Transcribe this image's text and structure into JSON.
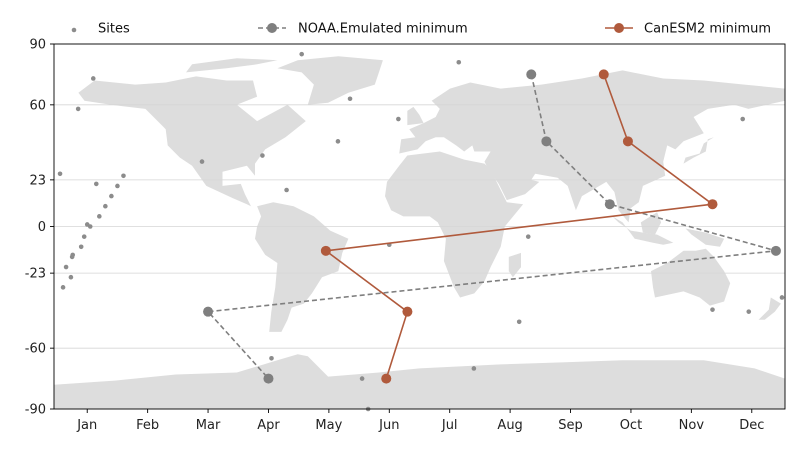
{
  "chart_data": {
    "type": "line",
    "title": "",
    "xlabel": "",
    "ylabel": "",
    "xlim": [
      0.45,
      12.55
    ],
    "ylim": [
      -90,
      90
    ],
    "y_ticks": [
      90,
      60,
      23,
      0,
      -23,
      -60,
      -90
    ],
    "x_ticks": [
      {
        "label": "Jan",
        "value": 1
      },
      {
        "label": "Feb",
        "value": 2
      },
      {
        "label": "Mar",
        "value": 3
      },
      {
        "label": "Apr",
        "value": 4
      },
      {
        "label": "May",
        "value": 5
      },
      {
        "label": "Jun",
        "value": 6
      },
      {
        "label": "Jul",
        "value": 7
      },
      {
        "label": "Aug",
        "value": 8
      },
      {
        "label": "Sep",
        "value": 9
      },
      {
        "label": "Oct",
        "value": 10
      },
      {
        "label": "Nov",
        "value": 11
      },
      {
        "label": "Dec",
        "value": 12
      }
    ],
    "grid": "horizontal",
    "legend_placement": "top",
    "background_map": "world-landmass",
    "series": [
      {
        "name": "Sites",
        "kind": "scatter",
        "color": "#8c8c8c",
        "points": [
          [
            0.55,
            26
          ],
          [
            0.6,
            -30
          ],
          [
            0.65,
            -20
          ],
          [
            0.73,
            -25
          ],
          [
            0.75,
            -15
          ],
          [
            0.76,
            -14
          ],
          [
            0.85,
            58
          ],
          [
            0.9,
            -10
          ],
          [
            0.95,
            -5
          ],
          [
            1.0,
            1
          ],
          [
            1.05,
            0
          ],
          [
            1.1,
            73
          ],
          [
            1.15,
            21
          ],
          [
            1.2,
            5
          ],
          [
            1.3,
            10
          ],
          [
            1.4,
            15
          ],
          [
            1.5,
            20
          ],
          [
            1.6,
            25
          ],
          [
            2.9,
            32
          ],
          [
            3.9,
            35
          ],
          [
            4.3,
            18
          ],
          [
            4.55,
            85
          ],
          [
            5.15,
            42
          ],
          [
            5.35,
            63
          ],
          [
            5.55,
            -75
          ],
          [
            5.65,
            -90
          ],
          [
            6.0,
            -9
          ],
          [
            6.15,
            53
          ],
          [
            7.15,
            81
          ],
          [
            8.3,
            -5
          ],
          [
            8.15,
            -47
          ],
          [
            7.4,
            -70
          ],
          [
            11.35,
            -41
          ],
          [
            11.85,
            53
          ],
          [
            11.95,
            -42
          ],
          [
            12.5,
            -35
          ],
          [
            4.05,
            -65
          ]
        ]
      },
      {
        "name": "NOAA.Emulated minimum",
        "kind": "line",
        "color": "#7f7f7f",
        "dashed": true,
        "points": [
          [
            8.35,
            75
          ],
          [
            8.6,
            42
          ],
          [
            9.65,
            11
          ],
          [
            12.4,
            -12
          ],
          [
            3.0,
            -42
          ],
          [
            4.0,
            -75
          ]
        ]
      },
      {
        "name": "CanESM2 minimum",
        "kind": "line",
        "color": "#b05a3c",
        "dashed": false,
        "points": [
          [
            9.55,
            75
          ],
          [
            9.95,
            42
          ],
          [
            11.35,
            11
          ],
          [
            4.95,
            -12
          ],
          [
            6.3,
            -42
          ],
          [
            5.95,
            -75
          ]
        ]
      }
    ]
  }
}
